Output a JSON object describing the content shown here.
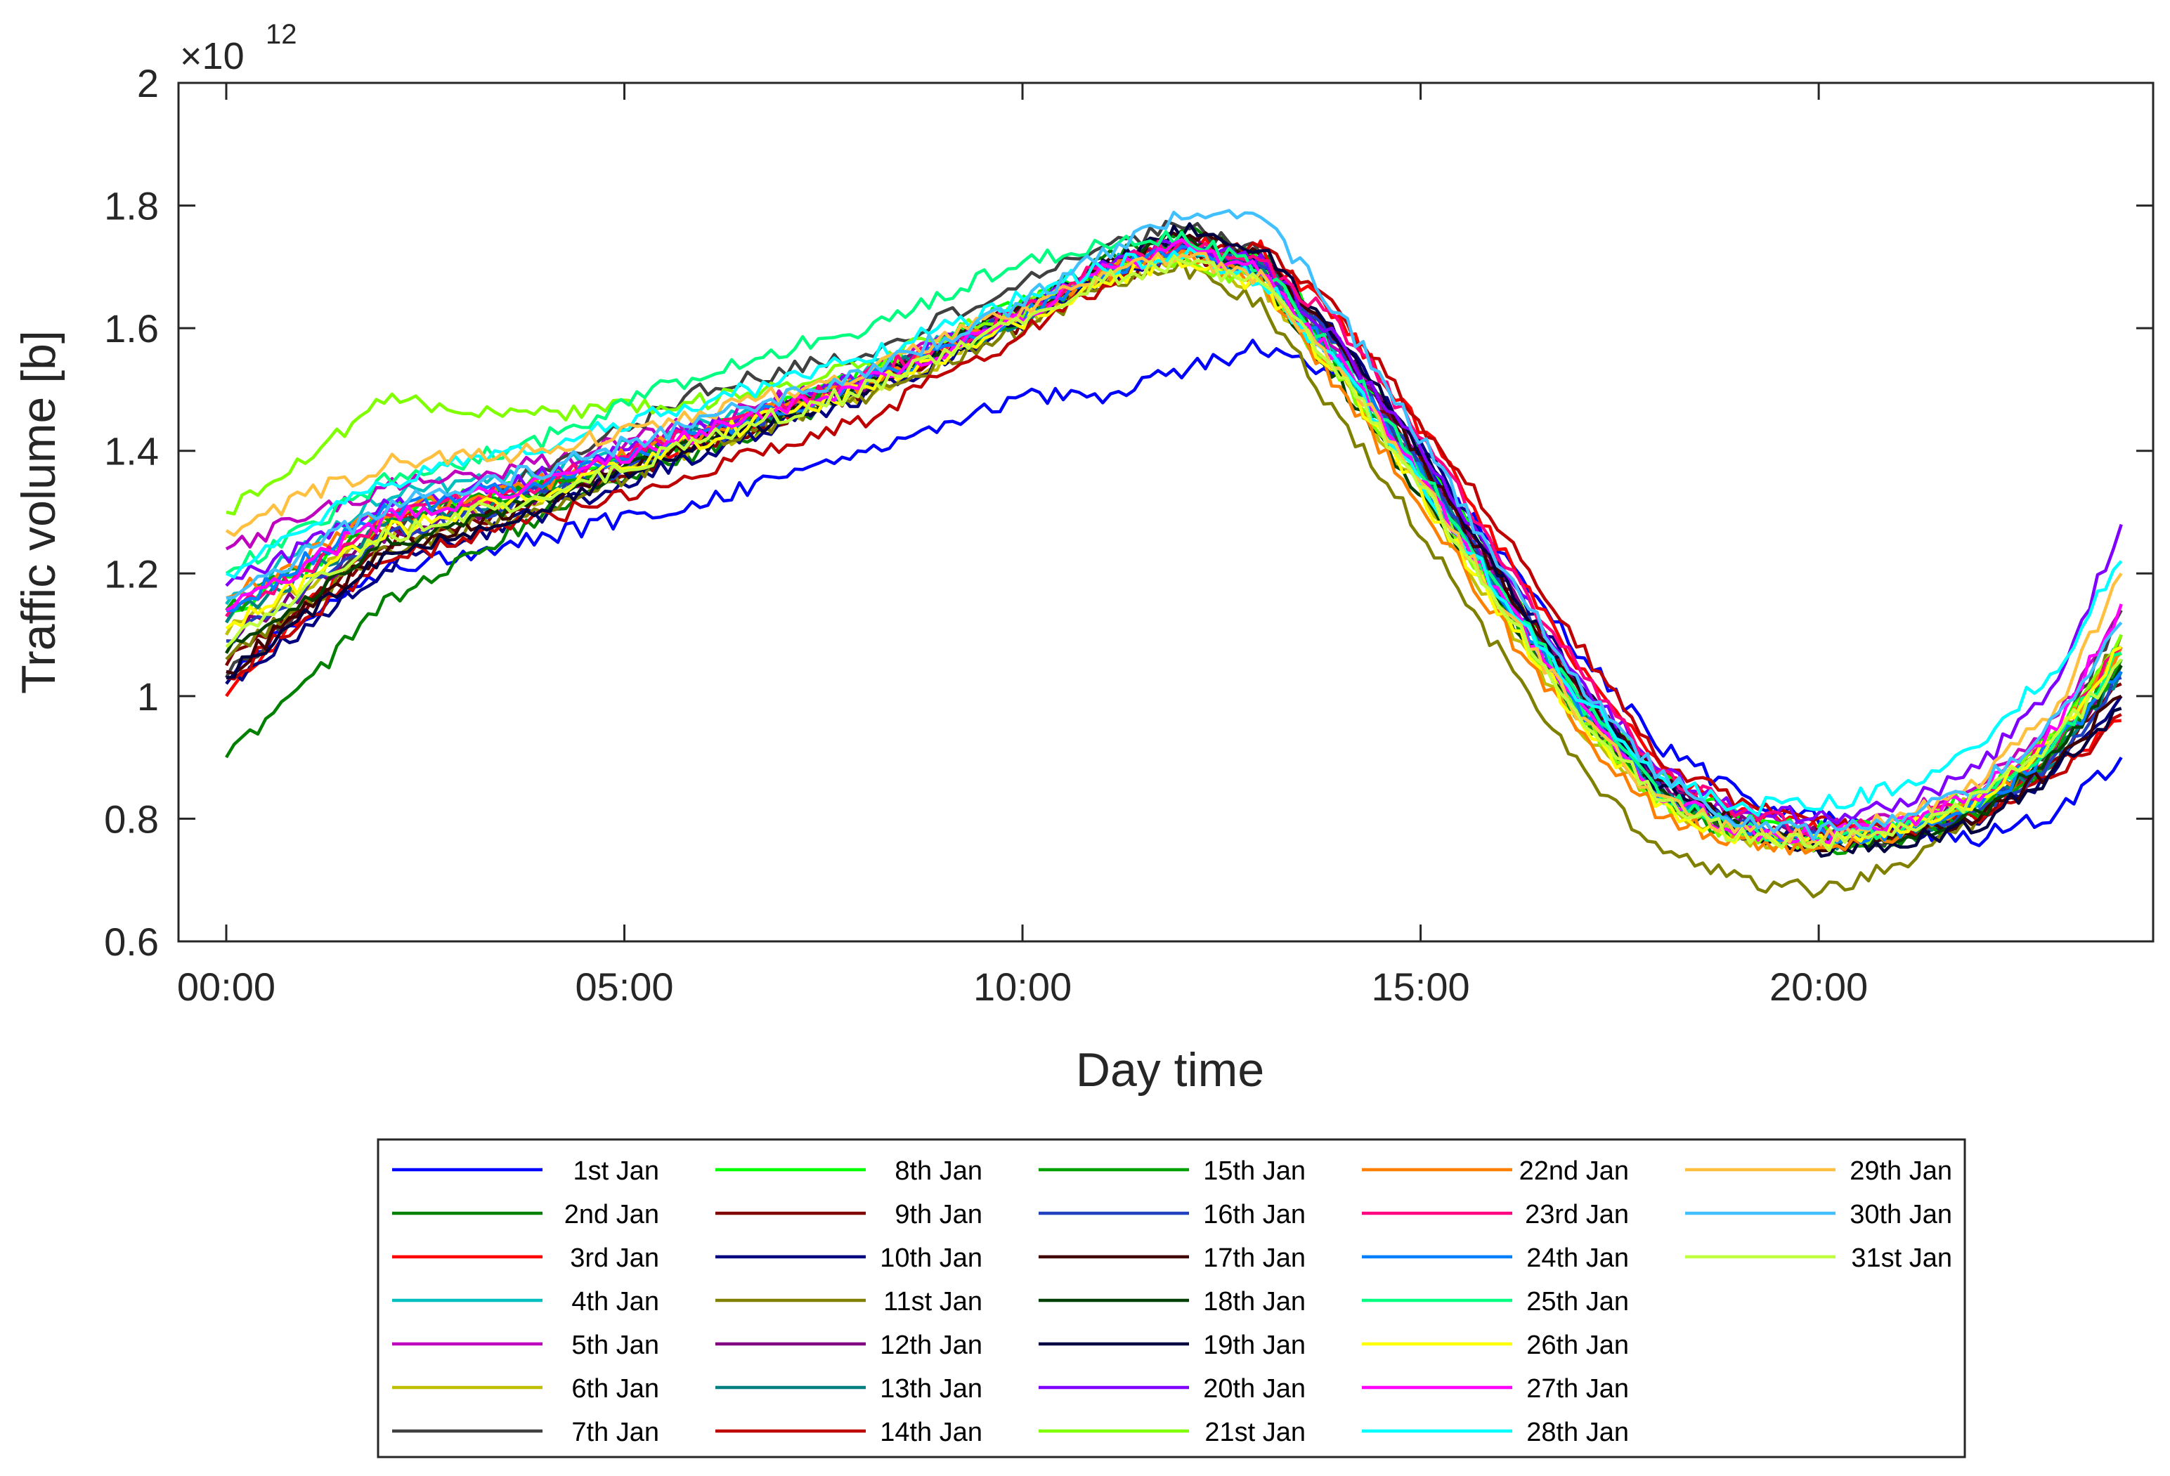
{
  "chart_data": {
    "type": "line",
    "title": "",
    "xlabel": "Day time",
    "ylabel": "Traffic volume [b]",
    "xlim_hours": [
      -0.6,
      24.2
    ],
    "ylim": [
      0.6,
      2.0
    ],
    "y_exponent_base": "×10",
    "y_exponent_power": "12",
    "x_ticks": [
      {
        "hours": 0,
        "label": "00:00"
      },
      {
        "hours": 5,
        "label": "05:00"
      },
      {
        "hours": 10,
        "label": "10:00"
      },
      {
        "hours": 15,
        "label": "15:00"
      },
      {
        "hours": 20,
        "label": "20:00"
      }
    ],
    "y_ticks": [
      {
        "value": 0.6,
        "label": "0.6"
      },
      {
        "value": 0.8,
        "label": "0.8"
      },
      {
        "value": 1.0,
        "label": "1"
      },
      {
        "value": 1.2,
        "label": "1.2"
      },
      {
        "value": 1.4,
        "label": "1.4"
      },
      {
        "value": 1.6,
        "label": "1.6"
      },
      {
        "value": 1.8,
        "label": "1.8"
      },
      {
        "value": 2.0,
        "label": "2"
      }
    ],
    "x_hours": [
      0,
      2,
      4,
      6,
      8,
      10,
      11,
      12,
      13,
      14,
      15,
      16,
      17,
      18,
      19,
      20,
      21,
      22,
      23,
      23.8
    ],
    "series": [
      {
        "name": "1st Jan",
        "color": "#0000ff",
        "values": [
          1.04,
          1.21,
          1.26,
          1.32,
          1.4,
          1.49,
          1.49,
          1.53,
          1.57,
          1.52,
          1.38,
          1.24,
          1.07,
          0.92,
          0.84,
          0.8,
          0.78,
          0.77,
          0.81,
          0.9
        ]
      },
      {
        "name": "2nd Jan",
        "color": "#008000",
        "values": [
          0.9,
          1.15,
          1.3,
          1.4,
          1.5,
          1.63,
          1.71,
          1.76,
          1.72,
          1.55,
          1.37,
          1.17,
          0.99,
          0.85,
          0.79,
          0.77,
          0.77,
          0.81,
          0.9,
          1.06
        ]
      },
      {
        "name": "3rd Jan",
        "color": "#ff0000",
        "values": [
          1.0,
          1.28,
          1.34,
          1.42,
          1.51,
          1.62,
          1.69,
          1.74,
          1.73,
          1.61,
          1.44,
          1.24,
          1.05,
          0.88,
          0.81,
          0.78,
          0.78,
          0.81,
          0.89,
          0.96
        ]
      },
      {
        "name": "4th Jan",
        "color": "#00bfbf",
        "values": [
          1.15,
          1.33,
          1.37,
          1.44,
          1.53,
          1.63,
          1.7,
          1.73,
          1.69,
          1.54,
          1.36,
          1.16,
          0.98,
          0.84,
          0.78,
          0.77,
          0.78,
          0.82,
          0.93,
          1.08
        ]
      },
      {
        "name": "5th Jan",
        "color": "#bf00bf",
        "values": [
          1.24,
          1.34,
          1.38,
          1.45,
          1.52,
          1.63,
          1.69,
          1.73,
          1.7,
          1.56,
          1.38,
          1.18,
          1.0,
          0.86,
          0.8,
          0.78,
          0.8,
          0.86,
          0.96,
          1.14
        ]
      },
      {
        "name": "6th Jan",
        "color": "#bfbf00",
        "values": [
          1.1,
          1.27,
          1.33,
          1.41,
          1.49,
          1.61,
          1.68,
          1.71,
          1.67,
          1.52,
          1.33,
          1.13,
          0.95,
          0.82,
          0.77,
          0.76,
          0.78,
          0.83,
          0.94,
          1.07
        ]
      },
      {
        "name": "7th Jan",
        "color": "#404040",
        "values": [
          1.03,
          1.27,
          1.37,
          1.5,
          1.56,
          1.67,
          1.73,
          1.77,
          1.72,
          1.57,
          1.37,
          1.16,
          0.97,
          0.83,
          0.78,
          0.76,
          0.77,
          0.82,
          0.92,
          1.14
        ]
      },
      {
        "name": "8th Jan",
        "color": "#00ff00",
        "values": [
          1.12,
          1.3,
          1.35,
          1.43,
          1.52,
          1.64,
          1.7,
          1.74,
          1.71,
          1.57,
          1.4,
          1.2,
          1.01,
          0.87,
          0.8,
          0.78,
          0.79,
          0.84,
          0.94,
          1.08
        ]
      },
      {
        "name": "9th Jan",
        "color": "#800000",
        "values": [
          1.05,
          1.25,
          1.32,
          1.41,
          1.5,
          1.61,
          1.68,
          1.72,
          1.7,
          1.56,
          1.38,
          1.19,
          1.01,
          0.86,
          0.79,
          0.77,
          0.78,
          0.81,
          0.9,
          1.02
        ]
      },
      {
        "name": "10th Jan",
        "color": "#000080",
        "values": [
          1.02,
          1.21,
          1.3,
          1.4,
          1.49,
          1.61,
          1.68,
          1.73,
          1.71,
          1.58,
          1.41,
          1.21,
          1.02,
          0.86,
          0.79,
          0.76,
          0.77,
          0.8,
          0.88,
          1.0
        ]
      },
      {
        "name": "11st Jan",
        "color": "#808000",
        "values": [
          1.06,
          1.24,
          1.31,
          1.41,
          1.49,
          1.6,
          1.67,
          1.7,
          1.64,
          1.45,
          1.27,
          1.07,
          0.88,
          0.75,
          0.7,
          0.68,
          0.72,
          0.8,
          0.92,
          1.1
        ]
      },
      {
        "name": "12th Jan",
        "color": "#800080",
        "values": [
          1.09,
          1.26,
          1.33,
          1.43,
          1.51,
          1.63,
          1.7,
          1.74,
          1.71,
          1.57,
          1.39,
          1.19,
          1.01,
          0.86,
          0.79,
          0.77,
          0.78,
          0.82,
          0.91,
          1.05
        ]
      },
      {
        "name": "13th Jan",
        "color": "#008080",
        "values": [
          1.12,
          1.28,
          1.34,
          1.43,
          1.51,
          1.62,
          1.69,
          1.73,
          1.7,
          1.55,
          1.37,
          1.17,
          0.99,
          0.85,
          0.78,
          0.76,
          0.77,
          0.81,
          0.9,
          1.04
        ]
      },
      {
        "name": "14th Jan",
        "color": "#bf0000",
        "values": [
          1.03,
          1.22,
          1.29,
          1.37,
          1.45,
          1.59,
          1.67,
          1.73,
          1.73,
          1.62,
          1.45,
          1.27,
          1.08,
          0.9,
          0.82,
          0.79,
          0.78,
          0.8,
          0.87,
          0.97
        ]
      },
      {
        "name": "15th Jan",
        "color": "#00a000",
        "values": [
          1.14,
          1.29,
          1.34,
          1.43,
          1.51,
          1.62,
          1.69,
          1.73,
          1.69,
          1.53,
          1.35,
          1.15,
          0.97,
          0.83,
          0.77,
          0.75,
          0.77,
          0.81,
          0.91,
          1.06
        ]
      },
      {
        "name": "16th Jan",
        "color": "#2040c0",
        "values": [
          1.09,
          1.26,
          1.33,
          1.42,
          1.51,
          1.62,
          1.69,
          1.73,
          1.7,
          1.56,
          1.38,
          1.18,
          1.0,
          0.85,
          0.79,
          0.77,
          0.78,
          0.81,
          0.9,
          1.03
        ]
      },
      {
        "name": "17th Jan",
        "color": "#400000",
        "values": [
          1.04,
          1.24,
          1.32,
          1.42,
          1.51,
          1.63,
          1.7,
          1.75,
          1.72,
          1.57,
          1.39,
          1.19,
          1.01,
          0.86,
          0.79,
          0.76,
          0.77,
          0.8,
          0.89,
          1.0
        ]
      },
      {
        "name": "18th Jan",
        "color": "#004000",
        "values": [
          1.07,
          1.25,
          1.32,
          1.42,
          1.51,
          1.63,
          1.7,
          1.74,
          1.68,
          1.51,
          1.33,
          1.15,
          0.98,
          0.84,
          0.78,
          0.76,
          0.77,
          0.81,
          0.91,
          1.05
        ]
      },
      {
        "name": "19th Jan",
        "color": "#000040",
        "values": [
          1.03,
          1.23,
          1.31,
          1.41,
          1.5,
          1.62,
          1.7,
          1.76,
          1.73,
          1.58,
          1.4,
          1.2,
          1.01,
          0.85,
          0.78,
          0.75,
          0.76,
          0.79,
          0.88,
          0.98
        ]
      },
      {
        "name": "20th Jan",
        "color": "#8000ff",
        "values": [
          1.18,
          1.31,
          1.36,
          1.44,
          1.52,
          1.63,
          1.7,
          1.74,
          1.71,
          1.57,
          1.4,
          1.21,
          1.03,
          0.88,
          0.82,
          0.8,
          0.82,
          0.88,
          1.02,
          1.28
        ]
      },
      {
        "name": "21st Jan",
        "color": "#80ff00",
        "values": [
          1.3,
          1.48,
          1.46,
          1.48,
          1.54,
          1.63,
          1.69,
          1.71,
          1.67,
          1.52,
          1.34,
          1.15,
          0.97,
          0.83,
          0.77,
          0.76,
          0.78,
          0.83,
          0.94,
          1.1
        ]
      },
      {
        "name": "22nd Jan",
        "color": "#ff8000",
        "values": [
          1.16,
          1.3,
          1.35,
          1.43,
          1.51,
          1.62,
          1.69,
          1.72,
          1.67,
          1.5,
          1.31,
          1.12,
          0.94,
          0.81,
          0.76,
          0.75,
          0.77,
          0.82,
          0.93,
          1.08
        ]
      },
      {
        "name": "23rd Jan",
        "color": "#ff0080",
        "values": [
          1.13,
          1.29,
          1.35,
          1.44,
          1.52,
          1.63,
          1.7,
          1.74,
          1.71,
          1.6,
          1.43,
          1.23,
          1.04,
          0.88,
          0.81,
          0.78,
          0.79,
          0.83,
          0.93,
          1.08
        ]
      },
      {
        "name": "24th Jan",
        "color": "#0080ff",
        "values": [
          1.14,
          1.3,
          1.35,
          1.43,
          1.51,
          1.62,
          1.69,
          1.73,
          1.69,
          1.54,
          1.36,
          1.16,
          0.98,
          0.84,
          0.78,
          0.77,
          0.78,
          0.82,
          0.92,
          1.04
        ]
      },
      {
        "name": "25th Jan",
        "color": "#00ff80",
        "values": [
          1.2,
          1.35,
          1.42,
          1.53,
          1.6,
          1.71,
          1.74,
          1.75,
          1.7,
          1.55,
          1.37,
          1.17,
          0.99,
          0.84,
          0.78,
          0.76,
          0.78,
          0.83,
          0.93,
          1.07
        ]
      },
      {
        "name": "26th Jan",
        "color": "#ffff00",
        "values": [
          1.11,
          1.27,
          1.33,
          1.42,
          1.5,
          1.61,
          1.68,
          1.71,
          1.67,
          1.52,
          1.33,
          1.14,
          0.96,
          0.82,
          0.77,
          0.76,
          0.78,
          0.83,
          0.94,
          1.08
        ]
      },
      {
        "name": "27th Jan",
        "color": "#ff00ff",
        "values": [
          1.14,
          1.29,
          1.35,
          1.43,
          1.51,
          1.62,
          1.69,
          1.73,
          1.69,
          1.54,
          1.36,
          1.16,
          0.98,
          0.84,
          0.78,
          0.77,
          0.79,
          0.84,
          0.95,
          1.15
        ]
      },
      {
        "name": "28th Jan",
        "color": "#00ffff",
        "values": [
          1.2,
          1.35,
          1.41,
          1.48,
          1.55,
          1.65,
          1.7,
          1.72,
          1.68,
          1.53,
          1.35,
          1.17,
          1.0,
          0.87,
          0.82,
          0.82,
          0.85,
          0.92,
          1.05,
          1.22
        ]
      },
      {
        "name": "29th Jan",
        "color": "#ffc040",
        "values": [
          1.27,
          1.38,
          1.4,
          1.46,
          1.53,
          1.63,
          1.69,
          1.72,
          1.68,
          1.53,
          1.35,
          1.15,
          0.97,
          0.83,
          0.78,
          0.77,
          0.8,
          0.86,
          0.98,
          1.2
        ]
      },
      {
        "name": "30th Jan",
        "color": "#40c0ff",
        "values": [
          1.16,
          1.31,
          1.37,
          1.45,
          1.53,
          1.64,
          1.72,
          1.78,
          1.78,
          1.62,
          1.42,
          1.21,
          1.02,
          0.87,
          0.8,
          0.78,
          0.8,
          0.85,
          0.96,
          1.12
        ]
      },
      {
        "name": "31st Jan",
        "color": "#c0ff40",
        "values": [
          1.08,
          1.26,
          1.33,
          1.42,
          1.5,
          1.61,
          1.68,
          1.71,
          1.67,
          1.52,
          1.34,
          1.15,
          0.97,
          0.83,
          0.77,
          0.76,
          0.78,
          0.83,
          0.93,
          1.06
        ]
      }
    ]
  }
}
